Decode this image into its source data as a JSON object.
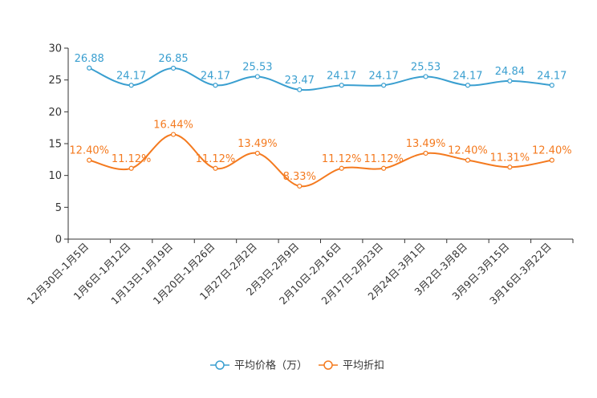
{
  "chart_data": {
    "type": "line",
    "categories": [
      "12月30日-1月5日",
      "1月6日-1月12日",
      "1月13日-1月19日",
      "1月20日-1月26日",
      "1月27日-2月2日",
      "2月3日-2月9日",
      "2月10日-2月16日",
      "2月17日-2月23日",
      "2月24日-3月1日",
      "3月2日-3月8日",
      "3月9日-3月15日",
      "3月16日-3月22日"
    ],
    "ylim": [
      0,
      30
    ],
    "yticks": [
      0,
      5,
      10,
      15,
      20,
      25,
      30
    ],
    "grid": false,
    "legend_position": "bottom-center",
    "series": [
      {
        "name": "平均价格（万）",
        "color": "#3a9fd0",
        "values": [
          26.88,
          24.17,
          26.85,
          24.17,
          25.53,
          23.47,
          24.17,
          24.17,
          25.53,
          24.17,
          24.84,
          24.17
        ],
        "labels": [
          "26.88",
          "24.17",
          "26.85",
          "24.17",
          "25.53",
          "23.47",
          "24.17",
          "24.17",
          "25.53",
          "24.17",
          "24.84",
          "24.17"
        ]
      },
      {
        "name": "平均折扣",
        "color": "#f47a1f",
        "values": [
          12.4,
          11.12,
          16.44,
          11.12,
          13.49,
          8.33,
          11.12,
          11.12,
          13.49,
          12.4,
          11.31,
          12.4
        ],
        "labels": [
          "12.40%",
          "11.12%",
          "16.44%",
          "11.12%",
          "13.49%",
          "8.33%",
          "11.12%",
          "11.12%",
          "13.49%",
          "12.40%",
          "11.31%",
          "12.40%"
        ]
      }
    ]
  }
}
